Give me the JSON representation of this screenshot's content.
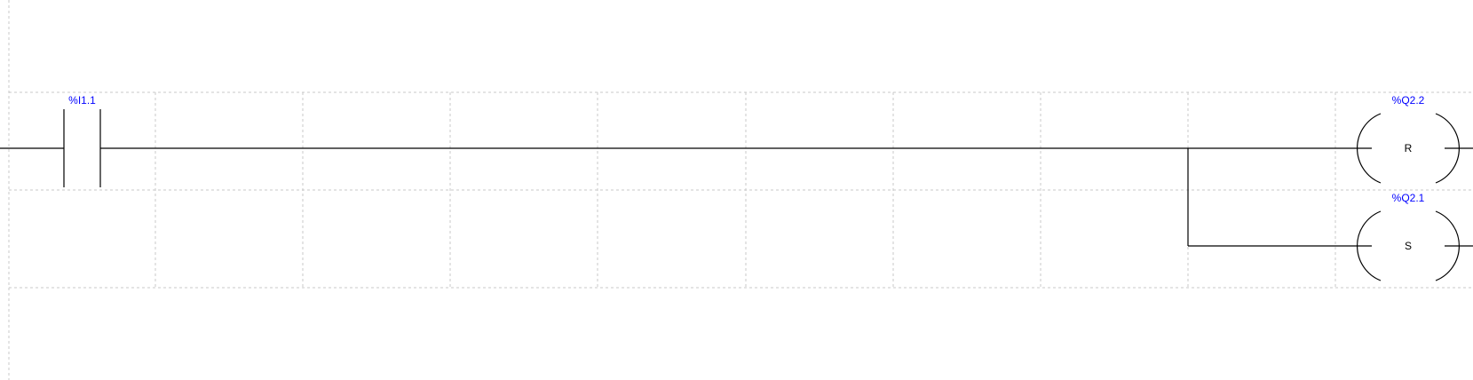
{
  "diagram": {
    "colors": {
      "tag": "#0000ff",
      "wire": "#000000",
      "grid": "#c9c9c9",
      "background": "#ffffff"
    },
    "contact": {
      "tag": "%I1.1",
      "type": "normally-open"
    },
    "coils": [
      {
        "tag": "%Q2.2",
        "letter": "R",
        "type": "reset"
      },
      {
        "tag": "%Q2.1",
        "letter": "S",
        "type": "set"
      }
    ]
  }
}
